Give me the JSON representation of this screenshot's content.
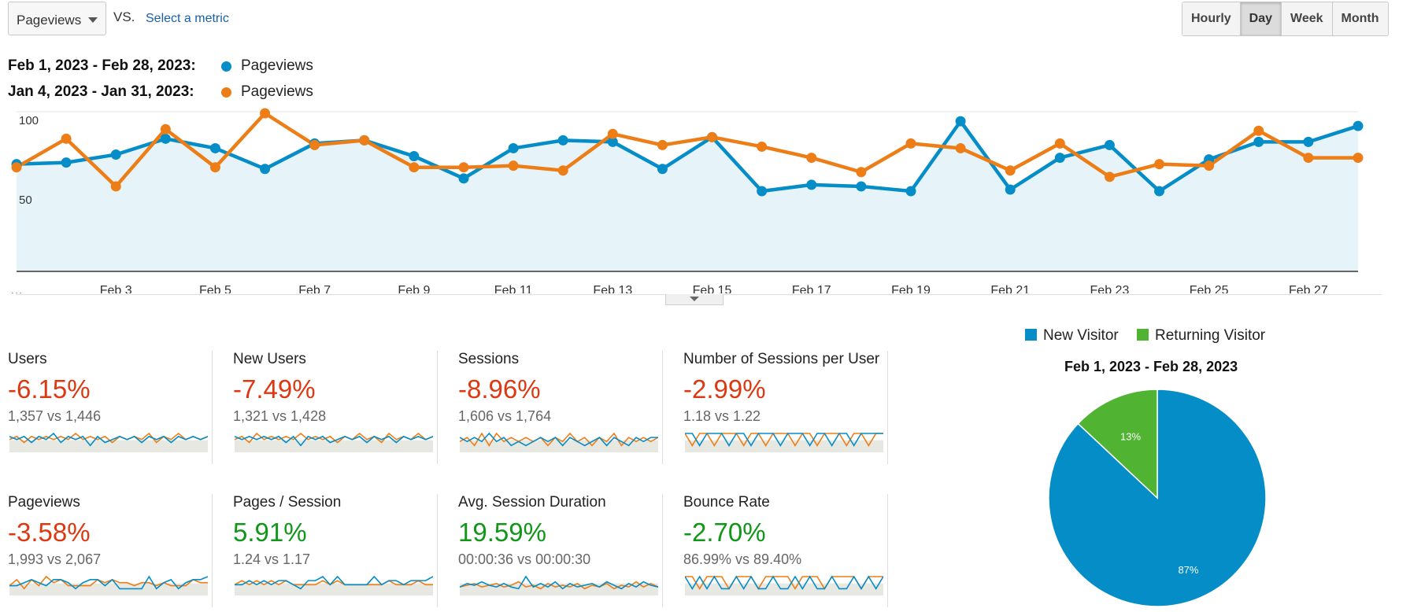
{
  "controls": {
    "metric_select": "Pageviews",
    "vs": "VS.",
    "select_metric": "Select a metric",
    "granularity": [
      {
        "label": "Hourly",
        "active": false
      },
      {
        "label": "Day",
        "active": true
      },
      {
        "label": "Week",
        "active": false
      },
      {
        "label": "Month",
        "active": false
      }
    ]
  },
  "legend": [
    {
      "range": "Feb 1, 2023 - Feb 28, 2023:",
      "name": "Pageviews",
      "color": "#058dc7"
    },
    {
      "range": "Jan 4, 2023 - Jan 31, 2023:",
      "name": "Pageviews",
      "color": "#ed7e17"
    }
  ],
  "chart_data": [
    {
      "type": "line",
      "x_tick_labels": [
        "…",
        "Feb 3",
        "Feb 5",
        "Feb 7",
        "Feb 9",
        "Feb 11",
        "Feb 13",
        "Feb 15",
        "Feb 17",
        "Feb 19",
        "Feb 21",
        "Feb 23",
        "Feb 25",
        "Feb 27"
      ],
      "y_tick_labels": [
        "100",
        "50"
      ],
      "ylim": [
        0,
        100
      ],
      "x": [
        "Feb 1",
        "Feb 2",
        "Feb 3",
        "Feb 4",
        "Feb 5",
        "Feb 6",
        "Feb 7",
        "Feb 8",
        "Feb 9",
        "Feb 10",
        "Feb 11",
        "Feb 12",
        "Feb 13",
        "Feb 14",
        "Feb 15",
        "Feb 16",
        "Feb 17",
        "Feb 18",
        "Feb 19",
        "Feb 20",
        "Feb 21",
        "Feb 22",
        "Feb 23",
        "Feb 24",
        "Feb 25",
        "Feb 26",
        "Feb 27",
        "Feb 28"
      ],
      "series": [
        {
          "name": "Pageviews",
          "color": "#058dc7",
          "values": [
            67,
            68,
            73,
            83,
            77,
            64,
            80,
            82,
            72,
            58,
            77,
            82,
            81,
            64,
            84,
            50,
            54,
            53,
            50,
            94,
            51,
            71,
            79,
            50,
            70,
            81,
            81,
            91
          ]
        },
        {
          "name": "Pageviews",
          "color": "#ed7e17",
          "values": [
            65,
            83,
            53,
            89,
            65,
            99,
            79,
            82,
            65,
            65,
            66,
            63,
            86,
            79,
            84,
            78,
            71,
            62,
            80,
            77,
            63,
            80,
            59,
            67,
            66,
            88,
            71,
            71
          ]
        }
      ],
      "grid": true,
      "area_fill": true
    },
    {
      "type": "pie",
      "legend": [
        "New Visitor",
        "Returning Visitor"
      ],
      "title": "Feb 1, 2023 - Feb 28, 2023",
      "slices": [
        {
          "label": "New Visitor",
          "value": 87,
          "display": "87%",
          "color": "#058dc7"
        },
        {
          "label": "Returning Visitor",
          "value": 13,
          "display": "13%",
          "color": "#50b432"
        }
      ]
    }
  ],
  "metrics": [
    {
      "title": "Users",
      "pct": "-6.15%",
      "pct_color": "#dc3912",
      "cmp": "1,357 vs 1,446",
      "spark": {
        "a": [
          6,
          5,
          6,
          4,
          6,
          5,
          7,
          4,
          6,
          5,
          6,
          3,
          6,
          4,
          5,
          6,
          5,
          6,
          4,
          6,
          5,
          6,
          4,
          6,
          5,
          6,
          5,
          6
        ],
        "b": [
          5,
          6,
          4,
          6,
          5,
          6,
          5,
          6,
          5,
          7,
          5,
          6,
          5,
          6,
          4,
          6,
          5,
          6,
          5,
          7,
          4,
          6,
          5,
          7,
          5,
          6,
          5,
          6
        ]
      }
    },
    {
      "title": "New Users",
      "pct": "-7.49%",
      "pct_color": "#dc3912",
      "cmp": "1,321 vs 1,428",
      "spark": {
        "a": [
          6,
          5,
          6,
          5,
          6,
          5,
          6,
          4,
          6,
          3,
          6,
          5,
          6,
          4,
          5,
          6,
          5,
          6,
          4,
          6,
          5,
          6,
          4,
          6,
          5,
          6,
          5,
          6
        ],
        "b": [
          5,
          6,
          4,
          7,
          5,
          6,
          5,
          6,
          5,
          7,
          5,
          6,
          5,
          6,
          4,
          6,
          5,
          7,
          5,
          6,
          4,
          7,
          5,
          6,
          5,
          7,
          5,
          6
        ]
      }
    },
    {
      "title": "Sessions",
      "pct": "-8.96%",
      "pct_color": "#dc3912",
      "cmp": "1,606 vs 1,764",
      "spark": {
        "a": [
          6,
          5,
          6,
          5,
          7,
          5,
          6,
          4,
          5,
          4,
          5,
          6,
          5,
          6,
          4,
          6,
          5,
          4,
          5,
          6,
          4,
          6,
          5,
          4,
          6,
          5,
          6,
          6
        ],
        "b": [
          5,
          6,
          4,
          7,
          4,
          7,
          5,
          6,
          5,
          6,
          5,
          6,
          4,
          6,
          5,
          7,
          5,
          6,
          4,
          6,
          5,
          7,
          4,
          6,
          5,
          6,
          5,
          6
        ]
      }
    },
    {
      "title": "Number of Sessions per User",
      "pct": "-2.99%",
      "pct_color": "#dc3912",
      "cmp": "1.18 vs 1.22",
      "spark": {
        "a": [
          6,
          6,
          5,
          6,
          6,
          6,
          5,
          6,
          6,
          5,
          6,
          6,
          6,
          5,
          6,
          6,
          6,
          5,
          6,
          6,
          5,
          6,
          6,
          5,
          6,
          6,
          6,
          6
        ],
        "b": [
          6,
          5,
          6,
          6,
          5,
          6,
          6,
          6,
          5,
          6,
          6,
          5,
          6,
          6,
          6,
          5,
          6,
          6,
          5,
          6,
          6,
          6,
          5,
          6,
          6,
          5,
          6,
          6
        ]
      }
    }
  ],
  "metrics2": [
    {
      "title": "Pageviews",
      "pct": "-3.58%",
      "pct_color": "#dc3912",
      "cmp": "1,993 vs 2,067",
      "spark": {
        "a": [
          6,
          6,
          7,
          8,
          7,
          6,
          8,
          8,
          7,
          5,
          7,
          8,
          8,
          6,
          8,
          5,
          5,
          5,
          5,
          9,
          5,
          7,
          8,
          5,
          7,
          8,
          8,
          9
        ],
        "b": [
          6,
          8,
          5,
          8,
          6,
          9,
          7,
          8,
          6,
          6,
          6,
          6,
          8,
          7,
          8,
          7,
          7,
          6,
          7,
          7,
          6,
          7,
          6,
          6,
          6,
          8,
          7,
          7
        ]
      }
    },
    {
      "title": "Pages / Session",
      "pct": "5.91%",
      "pct_color": "#109618",
      "cmp": "1.24 vs 1.17",
      "spark": {
        "a": [
          6,
          6,
          7,
          6,
          7,
          6,
          7,
          7,
          6,
          5,
          7,
          7,
          8,
          6,
          8,
          6,
          6,
          6,
          6,
          8,
          6,
          7,
          7,
          6,
          7,
          7,
          7,
          8
        ],
        "b": [
          6,
          7,
          6,
          7,
          6,
          7,
          6,
          7,
          6,
          6,
          6,
          6,
          7,
          6,
          7,
          6,
          6,
          6,
          6,
          6,
          6,
          7,
          6,
          6,
          6,
          7,
          6,
          6
        ]
      }
    },
    {
      "title": "Avg. Session Duration",
      "pct": "19.59%",
      "pct_color": "#109618",
      "cmp": "00:00:36 vs 00:00:30",
      "spark": {
        "a": [
          3,
          5,
          4,
          6,
          4,
          3,
          5,
          3,
          2,
          9,
          3,
          5,
          3,
          6,
          2,
          5,
          3,
          4,
          5,
          3,
          6,
          4,
          2,
          5,
          3,
          6,
          4,
          3
        ],
        "b": [
          3,
          4,
          5,
          3,
          4,
          5,
          3,
          4,
          6,
          3,
          4,
          2,
          5,
          3,
          4,
          3,
          5,
          2,
          4,
          3,
          5,
          2,
          4,
          3,
          6,
          3,
          5,
          3
        ]
      }
    },
    {
      "title": "Bounce Rate",
      "pct": "-2.70%",
      "pct_color": "#109618",
      "cmp": "86.99% vs 89.40%",
      "spark": {
        "a": [
          8,
          7,
          8,
          7,
          8,
          7,
          7,
          8,
          7,
          8,
          7,
          7,
          8,
          7,
          7,
          8,
          7,
          8,
          7,
          7,
          8,
          7,
          7,
          8,
          7,
          8,
          7,
          8
        ],
        "b": [
          8,
          8,
          7,
          8,
          8,
          8,
          7,
          8,
          8,
          8,
          7,
          8,
          8,
          8,
          8,
          7,
          8,
          8,
          8,
          7,
          8,
          8,
          8,
          8,
          7,
          8,
          8,
          8
        ]
      }
    }
  ]
}
